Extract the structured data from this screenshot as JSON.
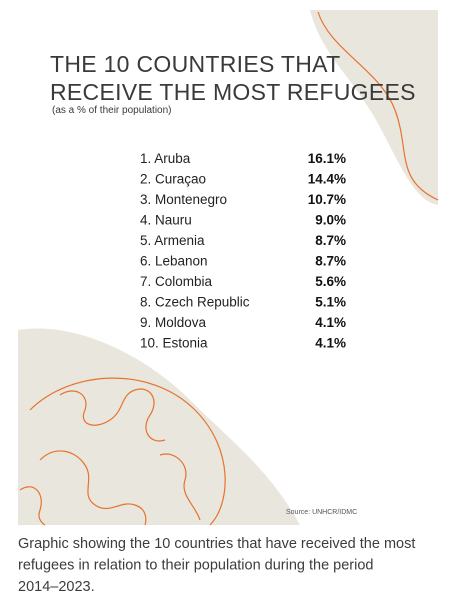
{
  "graphic": {
    "title_lines": [
      "THE 10 COUNTRIES THAT",
      "RECEIVE THE MOST REFUGEES"
    ],
    "subtitle": "(as a % of their population)",
    "rows": [
      {
        "label": "1. Aruba",
        "value": "16.1%"
      },
      {
        "label": "2. Curaçao",
        "value": "14.4%"
      },
      {
        "label": "3. Montenegro",
        "value": "10.7%"
      },
      {
        "label": "4. Nauru",
        "value": "9.0%"
      },
      {
        "label": "5. Armenia",
        "value": "8.7%"
      },
      {
        "label": "6. Lebanon",
        "value": "8.7%"
      },
      {
        "label": "7. Colombia",
        "value": "5.6%"
      },
      {
        "label": "8. Czech Republic",
        "value": "5.1%"
      },
      {
        "label": "9. Moldova",
        "value": "4.1%"
      },
      {
        "label": "10. Estonia",
        "value": "4.1%"
      }
    ],
    "source": "Source: UNHCR/IDMC"
  },
  "caption": {
    "lines": [
      "Graphic showing the 10 countries that have received the most",
      "refugees in relation to their population during the period",
      "2014–2023."
    ]
  }
}
